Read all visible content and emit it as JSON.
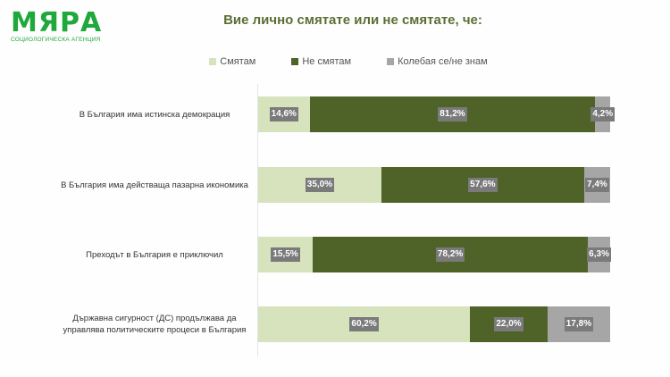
{
  "logo": {
    "name": "МЯРА",
    "subtitle": "СОЦИОЛОГИЧЕСКА АГЕНЦИЯ",
    "color": "#1fa83c"
  },
  "chart_data": {
    "type": "bar",
    "orientation": "horizontal-stacked-100",
    "title": "Вие лично смятате или не смятате, че:",
    "categories": [
      "В България има истинска демокрация",
      "В България има действаща пазарна икономика",
      "Преходът в България е приключил",
      "Държавна сигурност (ДС) продължава да управлява политическите процеси в България"
    ],
    "series": [
      {
        "name": "Смятам",
        "color": "#d6e3bc",
        "values": [
          14.6,
          35.0,
          15.5,
          60.2
        ],
        "labels": [
          "14,6%",
          "35,0%",
          "15,5%",
          "60,2%"
        ]
      },
      {
        "name": "Не смятам",
        "color": "#4f6228",
        "values": [
          81.2,
          57.6,
          78.2,
          22.0
        ],
        "labels": [
          "81,2%",
          "57,6%",
          "78,2%",
          "22,0%"
        ]
      },
      {
        "name": "Колебая се/не знам",
        "color": "#a6a6a6",
        "values": [
          4.2,
          7.4,
          6.3,
          17.8
        ],
        "labels": [
          "4,2%",
          "7,4%",
          "6,3%",
          "17,8%"
        ]
      }
    ],
    "legend_position": "top",
    "grid": false,
    "xlim": [
      0,
      100
    ]
  },
  "rows": [
    {
      "label": "В България има истинска демокрация"
    },
    {
      "label": "В България има действаща пазарна икономика"
    },
    {
      "label": "Преходът в България е приключил"
    },
    {
      "label": "Държавна сигурност (ДС) продължава да управлява политическите процеси в България"
    }
  ]
}
